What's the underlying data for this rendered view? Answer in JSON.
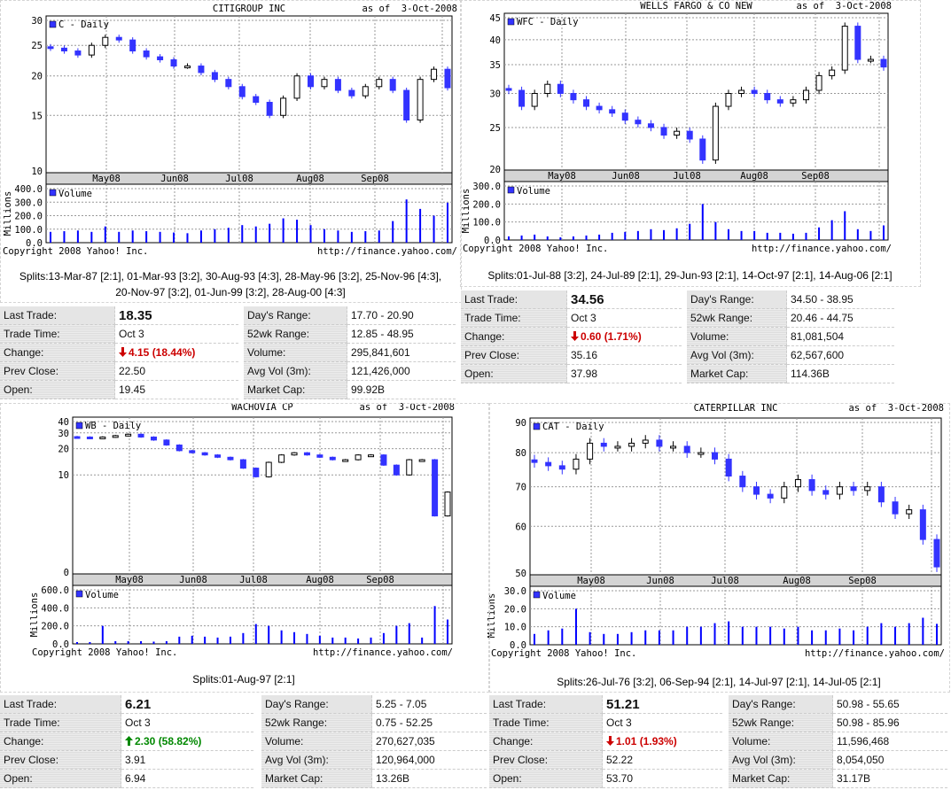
{
  "panels": [
    {
      "copyright": "Copyright 2008 Yahoo! Inc.",
      "url": "http://finance.yahoo.com/",
      "splits": "Splits:13-Mar-87 [2:1], 01-Mar-93 [3:2], 30-Aug-93 [4:3], 28-May-96 [3:2], 25-Nov-96 [4:3], 20-Nov-97 [3:2], 01-Jun-99 [3:2], 28-Aug-00 [4:3]",
      "quote": {
        "left": [
          {
            "label": "Last Trade:",
            "value": "18.35"
          },
          {
            "label": "Trade Time:",
            "value": "Oct 3"
          },
          {
            "label": "Change:",
            "value": "4.15 (18.44%)",
            "direction": "down"
          },
          {
            "label": "Prev Close:",
            "value": "22.50"
          },
          {
            "label": "Open:",
            "value": "19.45"
          }
        ],
        "right": [
          {
            "label": "Day's Range:",
            "value": "17.70 - 20.90"
          },
          {
            "label": "52wk Range:",
            "value": "12.85 - 48.95"
          },
          {
            "label": "Volume:",
            "value": "295,841,601"
          },
          {
            "label": "Avg Vol (3m):",
            "value": "121,426,000"
          },
          {
            "label": "Market Cap:",
            "value": "99.92B"
          }
        ]
      }
    },
    {
      "copyright": "Copyright 2008 Yahoo! Inc.",
      "url": "http://finance.yahoo.com/",
      "splits": "Splits:01-Jul-88 [3:2], 24-Jul-89 [2:1], 29-Jun-93 [2:1], 14-Oct-97 [2:1], 14-Aug-06 [2:1]",
      "quote": {
        "left": [
          {
            "label": "Last Trade:",
            "value": "34.56"
          },
          {
            "label": "Trade Time:",
            "value": "Oct 3"
          },
          {
            "label": "Change:",
            "value": "0.60 (1.71%)",
            "direction": "down"
          },
          {
            "label": "Prev Close:",
            "value": "35.16"
          },
          {
            "label": "Open:",
            "value": "37.98"
          }
        ],
        "right": [
          {
            "label": "Day's Range:",
            "value": "34.50 - 38.95"
          },
          {
            "label": "52wk Range:",
            "value": "20.46 - 44.75"
          },
          {
            "label": "Volume:",
            "value": "81,081,504"
          },
          {
            "label": "Avg Vol (3m):",
            "value": "62,567,600"
          },
          {
            "label": "Market Cap:",
            "value": "114.36B"
          }
        ]
      }
    },
    {
      "copyright": "Copyright 2008 Yahoo! Inc.",
      "url": "http://finance.yahoo.com/",
      "splits": "Splits:01-Aug-97 [2:1]",
      "quote": {
        "left": [
          {
            "label": "Last Trade:",
            "value": "6.21"
          },
          {
            "label": "Trade Time:",
            "value": "Oct 3"
          },
          {
            "label": "Change:",
            "value": "2.30 (58.82%)",
            "direction": "up"
          },
          {
            "label": "Prev Close:",
            "value": "3.91"
          },
          {
            "label": "Open:",
            "value": "6.94"
          }
        ],
        "right": [
          {
            "label": "Day's Range:",
            "value": "5.25 - 7.05"
          },
          {
            "label": "52wk Range:",
            "value": "0.75 - 52.25"
          },
          {
            "label": "Volume:",
            "value": "270,627,035"
          },
          {
            "label": "Avg Vol (3m):",
            "value": "120,964,000"
          },
          {
            "label": "Market Cap:",
            "value": "13.26B"
          }
        ]
      }
    },
    {
      "copyright": "Copyright 2008 Yahoo! Inc.",
      "url": "http://finance.yahoo.com/",
      "splits": "Splits:26-Jul-76 [3:2], 06-Sep-94 [2:1], 14-Jul-97 [2:1], 14-Jul-05 [2:1]",
      "quote": {
        "left": [
          {
            "label": "Last Trade:",
            "value": "51.21"
          },
          {
            "label": "Trade Time:",
            "value": "Oct 3"
          },
          {
            "label": "Change:",
            "value": "1.01 (1.93%)",
            "direction": "down"
          },
          {
            "label": "Prev Close:",
            "value": "52.22"
          },
          {
            "label": "Open:",
            "value": "53.70"
          }
        ],
        "right": [
          {
            "label": "Day's Range:",
            "value": "50.98 - 55.65"
          },
          {
            "label": "52wk Range:",
            "value": "50.98 - 85.96"
          },
          {
            "label": "Volume:",
            "value": "11,596,468"
          },
          {
            "label": "Avg Vol (3m):",
            "value": "8,054,050"
          },
          {
            "label": "Market Cap:",
            "value": "31.17B"
          }
        ]
      }
    }
  ],
  "colors": {
    "down_candle": "#3333ff",
    "up_candle": "#ffffff",
    "volume_bar": "#0000ff",
    "down_change": "#cc0000",
    "up_change": "#008800"
  },
  "chart_data": [
    {
      "type": "line",
      "title": "CITIGROUP INC",
      "as_of": "as of  3-Oct-2008",
      "legend": "C - Daily",
      "x_labels": [
        "May08",
        "Jun08",
        "Jul08",
        "Aug08",
        "Sep08"
      ],
      "y_scale": "log",
      "ylim": [
        10,
        30
      ],
      "y_ticks": [
        10,
        15,
        20,
        25,
        30
      ],
      "grid": true,
      "close": [
        24.5,
        24,
        23.3,
        25,
        26.5,
        26,
        24,
        23,
        22.5,
        21.5,
        21.5,
        20.5,
        19.5,
        18.5,
        17.2,
        16.5,
        15,
        17,
        20,
        18.5,
        19.5,
        18,
        17.3,
        18.5,
        19.5,
        18,
        14.5,
        19.5,
        21,
        18.35
      ],
      "volume": {
        "legend": "Volume",
        "ylabel": "Millions",
        "ylim": [
          0,
          400
        ],
        "y_ticks": [
          "0.0",
          "100.0",
          "200.0",
          "300.0",
          "400.0"
        ],
        "values": [
          80,
          85,
          90,
          80,
          120,
          80,
          90,
          85,
          80,
          75,
          70,
          90,
          100,
          110,
          130,
          120,
          140,
          180,
          170,
          130,
          100,
          90,
          80,
          85,
          90,
          160,
          320,
          250,
          200,
          296
        ]
      }
    },
    {
      "type": "line",
      "title": "WELLS FARGO & CO NEW",
      "as_of": "as of  3-Oct-2008",
      "legend": "WFC - Daily",
      "x_labels": [
        "May08",
        "Jun08",
        "Jul08",
        "Aug08",
        "Sep08"
      ],
      "y_scale": "log",
      "ylim": [
        20,
        45
      ],
      "y_ticks": [
        20,
        25,
        30,
        35,
        40,
        45
      ],
      "grid": true,
      "close": [
        30.5,
        28,
        30,
        31.5,
        30,
        29,
        28,
        27.5,
        27,
        26,
        25.5,
        25,
        24,
        24.5,
        23.5,
        21,
        28,
        30,
        30.5,
        30,
        29,
        28.5,
        29,
        30.5,
        33,
        34,
        43,
        36,
        36,
        34.56
      ],
      "volume": {
        "legend": "Volume",
        "ylabel": "Millions",
        "ylim": [
          0,
          300
        ],
        "y_ticks": [
          "0.0",
          "100.0",
          "200.0",
          "300.0"
        ],
        "values": [
          20,
          25,
          30,
          20,
          15,
          20,
          25,
          30,
          40,
          45,
          50,
          60,
          55,
          65,
          90,
          200,
          100,
          60,
          50,
          50,
          40,
          40,
          35,
          40,
          70,
          110,
          160,
          60,
          50,
          81
        ]
      }
    },
    {
      "type": "line",
      "title": "WACHOVIA CP",
      "as_of": "as of  3-Oct-2008",
      "legend": "WB - Daily",
      "x_labels": [
        "May08",
        "Jun08",
        "Jul08",
        "Aug08",
        "Sep08"
      ],
      "y_scale": "log1p",
      "ylim": [
        0,
        40
      ],
      "y_ticks": [
        0,
        10,
        20,
        30,
        40
      ],
      "grid": true,
      "close": [
        27,
        26,
        27,
        28,
        29,
        27,
        25,
        22,
        19,
        18,
        17,
        16,
        15,
        12,
        9.5,
        14,
        17,
        18,
        17,
        16,
        15,
        15,
        17,
        17,
        13,
        10,
        15,
        15,
        3,
        6.21
      ],
      "volume": {
        "legend": "Volume",
        "ylabel": "Millions",
        "ylim": [
          0,
          600
        ],
        "y_ticks": [
          "0.0",
          "200.0",
          "400.0",
          "600.0"
        ],
        "values": [
          20,
          20,
          200,
          30,
          30,
          30,
          25,
          30,
          80,
          90,
          80,
          70,
          80,
          120,
          220,
          200,
          150,
          130,
          110,
          90,
          70,
          70,
          60,
          70,
          120,
          200,
          230,
          70,
          420,
          270
        ]
      }
    },
    {
      "type": "line",
      "title": "CATERPILLAR INC",
      "as_of": "as of  3-Oct-2008",
      "legend": "CAT - Daily",
      "x_labels": [
        "May08",
        "Jun08",
        "Jul08",
        "Aug08",
        "Sep08"
      ],
      "y_scale": "log",
      "ylim": [
        50,
        90
      ],
      "y_ticks": [
        50,
        60,
        70,
        80,
        90
      ],
      "grid": true,
      "close": [
        77,
        76,
        75,
        78,
        83,
        82,
        82,
        83,
        84,
        82,
        82,
        80,
        80,
        78,
        73,
        70,
        68,
        67,
        70,
        72,
        69,
        68,
        70,
        69,
        70,
        66,
        63,
        64,
        57,
        51.21
      ],
      "volume": {
        "legend": "Volume",
        "ylabel": "Millions",
        "ylim": [
          0,
          30
        ],
        "y_ticks": [
          "0.0",
          "10.0",
          "20.0",
          "30.0"
        ],
        "values": [
          6,
          8,
          9,
          20,
          7,
          6,
          6,
          7,
          8,
          8,
          8,
          10,
          10,
          12,
          13,
          10,
          10,
          10,
          9,
          10,
          8,
          8,
          9,
          8,
          10,
          12,
          10,
          12,
          15,
          11.6
        ]
      }
    }
  ]
}
